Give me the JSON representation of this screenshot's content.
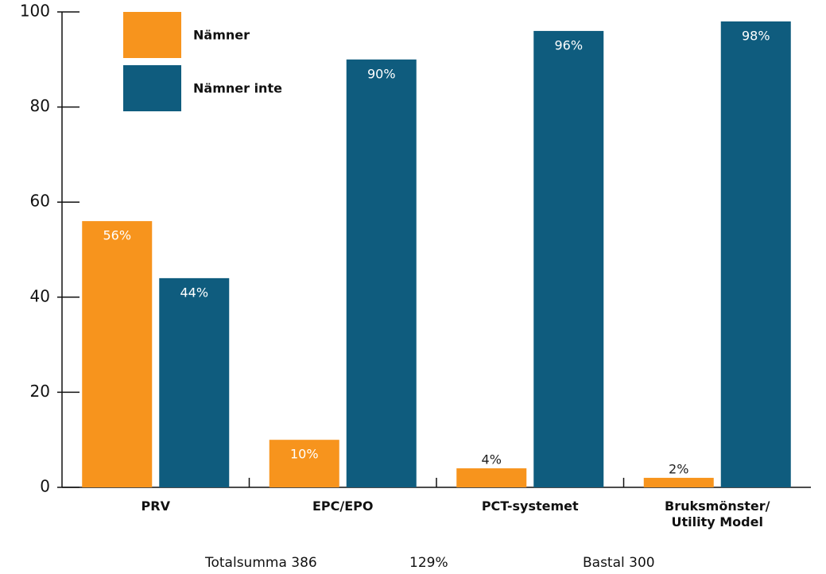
{
  "chart_data": {
    "type": "bar",
    "categories": [
      "PRV",
      "EPC/EPO",
      "PCT-systemet",
      "Bruksmönster/ Utility Model"
    ],
    "series": [
      {
        "name": "Nämner",
        "color": "#f7941d",
        "values": [
          56,
          10,
          4,
          2
        ],
        "value_labels": [
          "56%",
          "10%",
          "4%",
          "2%"
        ]
      },
      {
        "name": "Nämner inte",
        "color": "#0f5c7e",
        "values": [
          44,
          90,
          96,
          98
        ],
        "value_labels": [
          "44%",
          "90%",
          "96%",
          "98%"
        ]
      }
    ],
    "ylim": [
      0,
      100
    ],
    "yticks": [
      0,
      20,
      40,
      60,
      80,
      100
    ],
    "legend": "upper left",
    "footer": [
      "Totalsumma 386",
      "129%",
      "Bastal 300"
    ]
  }
}
